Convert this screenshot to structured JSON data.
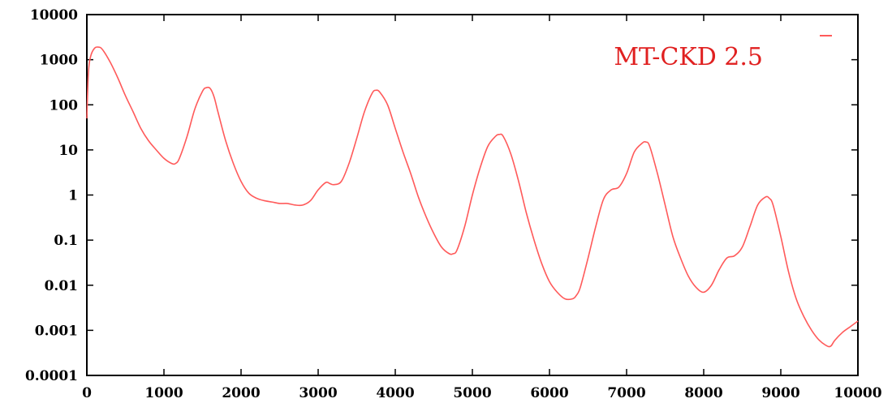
{
  "chart_data": {
    "type": "line",
    "title": "",
    "xlabel": "",
    "ylabel": "",
    "xlim": [
      0,
      10000
    ],
    "ylim": [
      0.0001,
      10000
    ],
    "y_scale": "log",
    "grid": false,
    "legend_placement": "top-right",
    "x_ticks": [
      "0",
      "1000",
      "2000",
      "3000",
      "4000",
      "5000",
      "6000",
      "7000",
      "8000",
      "9000",
      "10000"
    ],
    "y_ticks": [
      "10000",
      "1000",
      "100",
      "10",
      "1",
      "0.1",
      "0.01",
      "0.001",
      "0.0001"
    ],
    "colors": {
      "series": "#ff5a5a",
      "legend_text": "#e02020",
      "axes": "#000000"
    },
    "series": [
      {
        "name": "MT-CKD 2.5",
        "x": [
          0,
          20,
          50,
          100,
          150,
          200,
          300,
          400,
          500,
          600,
          700,
          800,
          900,
          1000,
          1100,
          1150,
          1200,
          1300,
          1400,
          1500,
          1550,
          1600,
          1650,
          1700,
          1800,
          1900,
          2000,
          2100,
          2200,
          2300,
          2400,
          2500,
          2600,
          2700,
          2800,
          2900,
          3000,
          3100,
          3150,
          3200,
          3300,
          3400,
          3500,
          3600,
          3700,
          3750,
          3800,
          3900,
          4000,
          4100,
          4200,
          4300,
          4400,
          4500,
          4600,
          4700,
          4750,
          4800,
          4900,
          5000,
          5100,
          5200,
          5300,
          5350,
          5400,
          5500,
          5600,
          5700,
          5800,
          5900,
          6000,
          6100,
          6200,
          6300,
          6350,
          6400,
          6500,
          6600,
          6700,
          6800,
          6900,
          7000,
          7100,
          7200,
          7250,
          7300,
          7400,
          7500,
          7600,
          7700,
          7800,
          7900,
          8000,
          8100,
          8200,
          8300,
          8400,
          8500,
          8600,
          8700,
          8800,
          8850,
          8900,
          9000,
          9100,
          9200,
          9300,
          9400,
          9500,
          9600,
          9650,
          9700,
          9800,
          9900,
          10000
        ],
        "y": [
          50,
          500,
          1200,
          1800,
          1900,
          1700,
          900,
          400,
          160,
          70,
          30,
          16,
          10,
          6.5,
          5,
          5,
          6.5,
          20,
          80,
          200,
          240,
          230,
          150,
          70,
          16,
          5,
          2,
          1.1,
          0.85,
          0.75,
          0.7,
          0.65,
          0.65,
          0.6,
          0.6,
          0.75,
          1.3,
          1.9,
          1.8,
          1.7,
          2,
          5,
          18,
          70,
          180,
          210,
          190,
          100,
          30,
          9,
          3,
          0.9,
          0.33,
          0.14,
          0.07,
          0.05,
          0.05,
          0.06,
          0.2,
          1,
          4,
          12,
          20,
          22,
          20,
          8,
          2,
          0.4,
          0.1,
          0.03,
          0.012,
          0.007,
          0.005,
          0.005,
          0.006,
          0.009,
          0.04,
          0.2,
          0.8,
          1.3,
          1.5,
          3,
          9,
          14,
          15,
          12,
          3,
          0.6,
          0.12,
          0.04,
          0.016,
          0.009,
          0.007,
          0.01,
          0.022,
          0.04,
          0.045,
          0.07,
          0.2,
          0.6,
          0.9,
          0.85,
          0.6,
          0.12,
          0.02,
          0.005,
          0.002,
          0.001,
          0.0006,
          0.00045,
          0.00045,
          0.0006,
          0.0009,
          0.0012,
          0.0016
        ]
      }
    ]
  }
}
